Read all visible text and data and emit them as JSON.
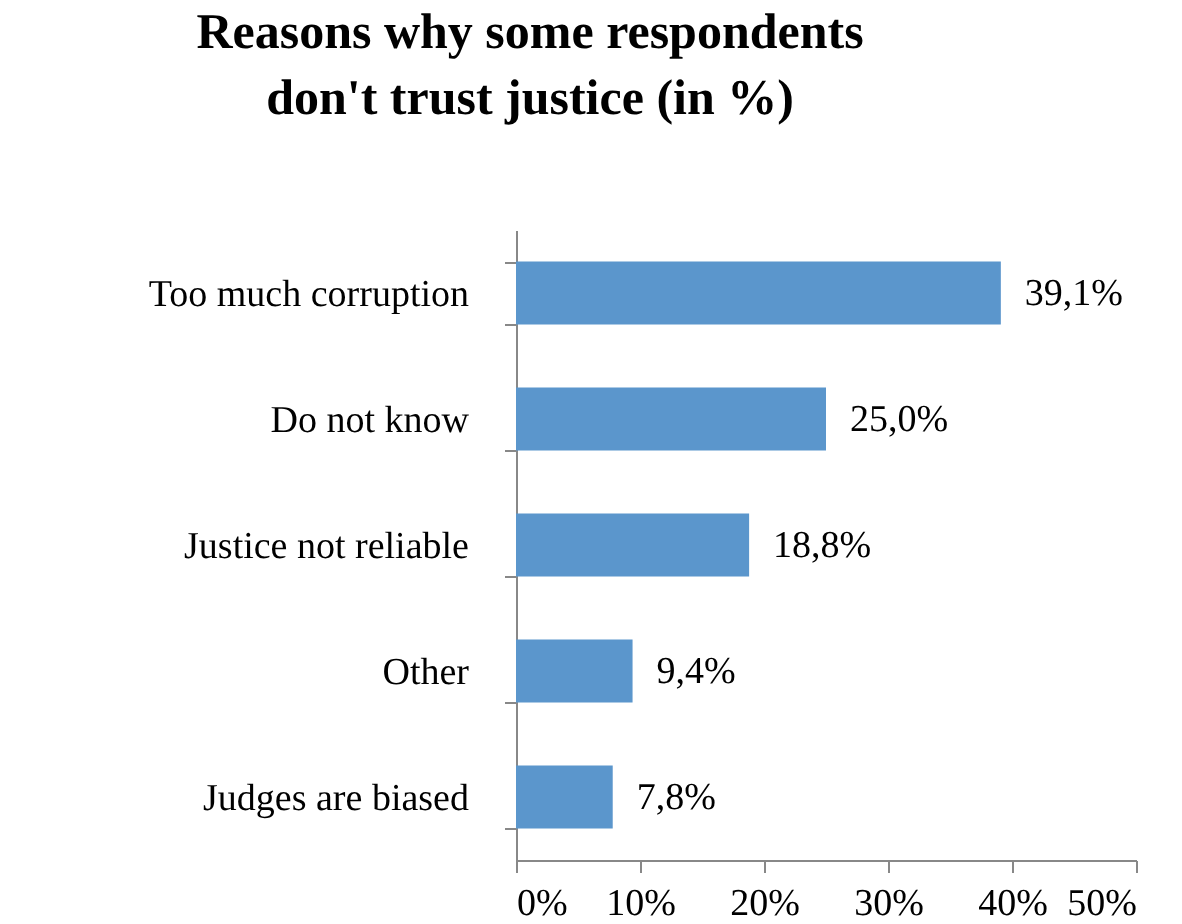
{
  "chart_data": {
    "type": "bar",
    "orientation": "horizontal",
    "title": "Reasons why some respondents don't trust justice (in %)",
    "categories": [
      "Too much corruption",
      "Do not know",
      "Justice not reliable",
      "Other",
      "Judges are biased"
    ],
    "values": [
      39.1,
      25.0,
      18.8,
      9.4,
      7.8
    ],
    "value_labels": [
      "39,1%",
      "25,0%",
      "18,8%",
      "9,4%",
      "7,8%"
    ],
    "color": "#5b96cc",
    "xlim": [
      0,
      50
    ],
    "xticks": [
      {
        "value": 0,
        "label": "0%"
      },
      {
        "value": 10,
        "label": "10%"
      },
      {
        "value": 20,
        "label": "20%"
      },
      {
        "value": 30,
        "label": "30%"
      },
      {
        "value": 40,
        "label": "40%"
      },
      {
        "value": 50,
        "label": "50%"
      }
    ],
    "grid": false
  }
}
